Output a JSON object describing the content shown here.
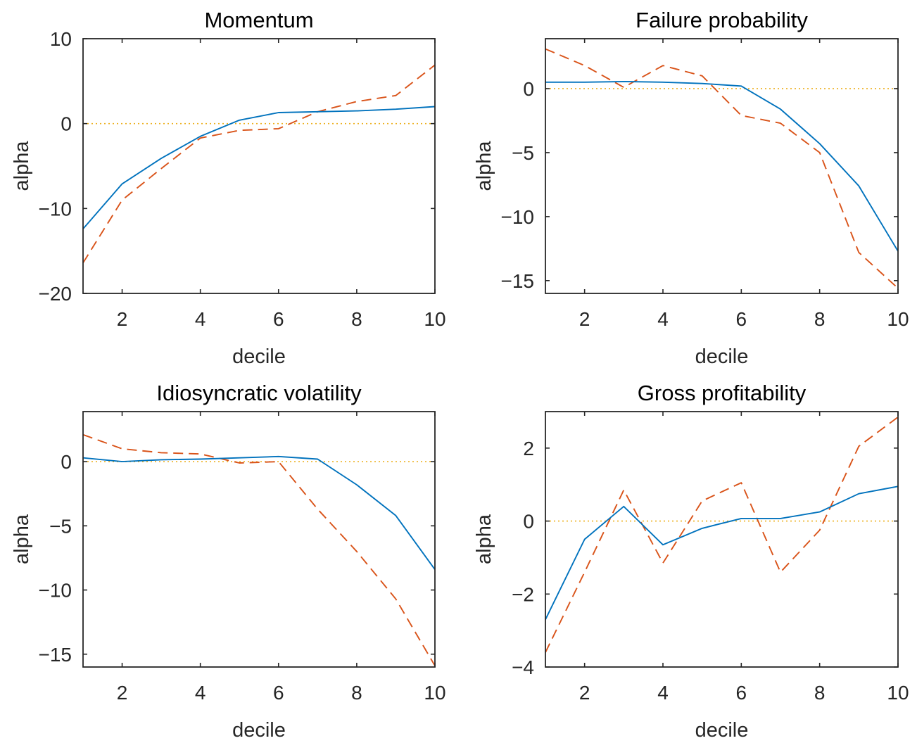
{
  "chart_data": [
    {
      "type": "line",
      "title": "Momentum",
      "xlabel": "decile",
      "ylabel": "alpha",
      "xlim": [
        1,
        10
      ],
      "ylim": [
        -20,
        10
      ],
      "xticks": [
        2,
        4,
        6,
        8,
        10
      ],
      "yticks": [
        -20,
        -10,
        0,
        10
      ],
      "x": [
        1,
        2,
        3,
        4,
        5,
        6,
        7,
        8,
        9,
        10
      ],
      "reference_line": 0,
      "series": [
        {
          "style": "solid",
          "color": "#0072BD",
          "values": [
            -12.4,
            -7.1,
            -4.1,
            -1.5,
            0.4,
            1.3,
            1.4,
            1.5,
            1.7,
            2.0
          ]
        },
        {
          "style": "dashed",
          "color": "#D95319",
          "values": [
            -16.4,
            -9.0,
            -5.3,
            -1.7,
            -0.8,
            -0.6,
            1.4,
            2.6,
            3.3,
            6.9
          ]
        }
      ]
    },
    {
      "type": "line",
      "title": "Failure probability",
      "xlabel": "decile",
      "ylabel": "alpha",
      "xlim": [
        1,
        10
      ],
      "ylim": [
        -16,
        3.9
      ],
      "xticks": [
        2,
        4,
        6,
        8,
        10
      ],
      "yticks": [
        -15,
        -10,
        -5,
        0
      ],
      "x": [
        1,
        2,
        3,
        4,
        5,
        6,
        7,
        8,
        9,
        10
      ],
      "reference_line": 0,
      "series": [
        {
          "style": "solid",
          "color": "#0072BD",
          "values": [
            0.5,
            0.5,
            0.55,
            0.5,
            0.4,
            0.2,
            -1.6,
            -4.3,
            -7.6,
            -12.7
          ]
        },
        {
          "style": "dashed",
          "color": "#D95319",
          "values": [
            3.1,
            1.8,
            0.1,
            1.8,
            1.0,
            -2.1,
            -2.7,
            -5.0,
            -12.8,
            -15.6
          ]
        }
      ]
    },
    {
      "type": "line",
      "title": "Idiosyncratic volatility",
      "xlabel": "decile",
      "ylabel": "alpha",
      "xlim": [
        1,
        10
      ],
      "ylim": [
        -16,
        3.9
      ],
      "xticks": [
        2,
        4,
        6,
        8,
        10
      ],
      "yticks": [
        -15,
        -10,
        -5,
        0
      ],
      "x": [
        1,
        2,
        3,
        4,
        5,
        6,
        7,
        8,
        9,
        10
      ],
      "reference_line": 0,
      "series": [
        {
          "style": "solid",
          "color": "#0072BD",
          "values": [
            0.3,
            0.0,
            0.15,
            0.2,
            0.3,
            0.4,
            0.2,
            -1.8,
            -4.2,
            -8.4
          ]
        },
        {
          "style": "dashed",
          "color": "#D95319",
          "values": [
            2.1,
            1.0,
            0.7,
            0.6,
            -0.1,
            0.0,
            -3.7,
            -7.0,
            -10.7,
            -15.9
          ]
        }
      ]
    },
    {
      "type": "line",
      "title": "Gross profitability",
      "xlabel": "decile",
      "ylabel": "alpha",
      "xlim": [
        1,
        10
      ],
      "ylim": [
        -4,
        3
      ],
      "xticks": [
        2,
        4,
        6,
        8,
        10
      ],
      "yticks": [
        -4,
        -2,
        0,
        2
      ],
      "x": [
        1,
        2,
        3,
        4,
        5,
        6,
        7,
        8,
        9,
        10
      ],
      "reference_line": 0,
      "series": [
        {
          "style": "solid",
          "color": "#0072BD",
          "values": [
            -2.7,
            -0.5,
            0.4,
            -0.65,
            -0.2,
            0.07,
            0.07,
            0.25,
            0.75,
            0.95
          ]
        },
        {
          "style": "dashed",
          "color": "#D95319",
          "values": [
            -3.6,
            -1.4,
            0.85,
            -1.15,
            0.55,
            1.05,
            -1.4,
            -0.25,
            2.05,
            2.85
          ]
        }
      ]
    }
  ],
  "colors": {
    "reference_line": "#EDB120",
    "axes": "#262626",
    "background": "#ffffff"
  }
}
